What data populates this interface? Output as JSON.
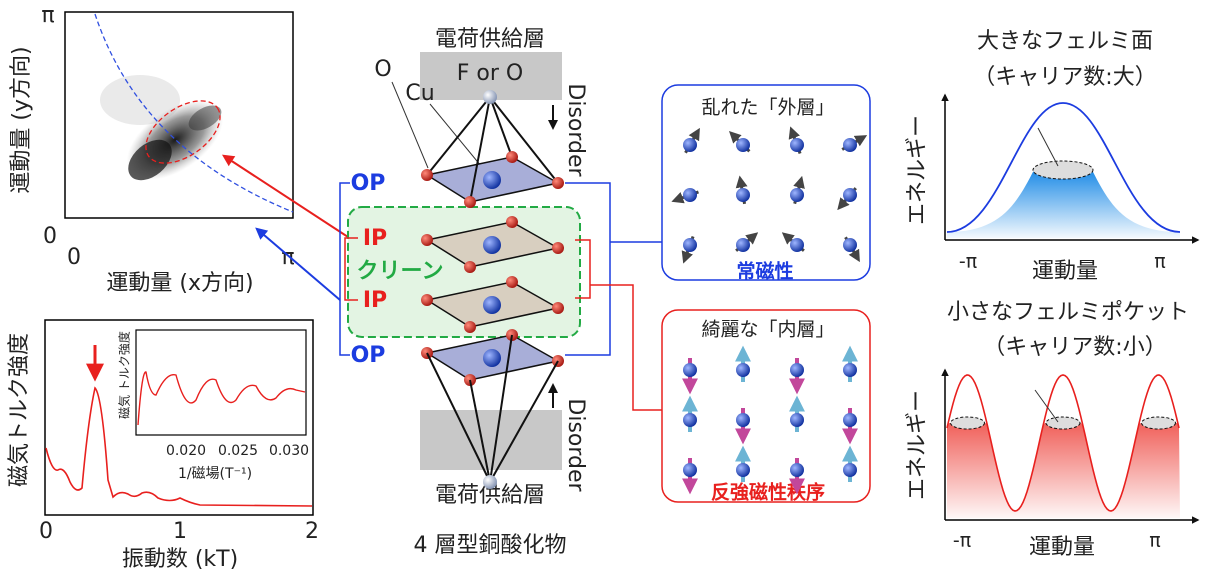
{
  "arpes": {
    "y_label": "運動量 (y方向)",
    "x_label": "運動量 (x方向)",
    "y_ticks": [
      "π",
      "0"
    ],
    "x_ticks": [
      "0",
      "π"
    ]
  },
  "torque": {
    "y_label": "磁気トルク強度",
    "x_label": "振動数 (kT)",
    "x_ticks": [
      "0",
      "1",
      "2"
    ],
    "inset": {
      "y_label": "磁気 トルク強度",
      "x_label": "1/磁場(T⁻¹)",
      "x_ticks": [
        "0.020",
        "0.025",
        "0.030"
      ]
    }
  },
  "structure": {
    "top_layer": "電荷供給層",
    "apex": "F or O",
    "oxygen": "O",
    "copper": "Cu",
    "disorder_top": "Disorder",
    "outer_top": "OP",
    "inner_top": "IP",
    "clean": "クリーン",
    "inner_bottom": "IP",
    "outer_bottom": "OP",
    "disorder_bottom": "Disorder",
    "bottom_layer": "電荷供給層",
    "caption": "4 層型銅酸化物"
  },
  "outer_box": {
    "title": "乱れた「外層」",
    "label": "常磁性"
  },
  "inner_box": {
    "title": "綺麗な「内層」",
    "label": "反強磁性秩序"
  },
  "large_fs": {
    "title": "大きなフェルミ面",
    "subtitle": "（キャリア数:大）",
    "y_label": "エネルギー",
    "x_label": "運動量",
    "x_ticks": [
      "-π",
      "π"
    ]
  },
  "small_fs": {
    "title": "小さなフェルミポケット",
    "subtitle": "（キャリア数:小）",
    "y_label": "エネルギー",
    "x_label": "運動量",
    "x_ticks": [
      "-π",
      "π"
    ]
  }
}
